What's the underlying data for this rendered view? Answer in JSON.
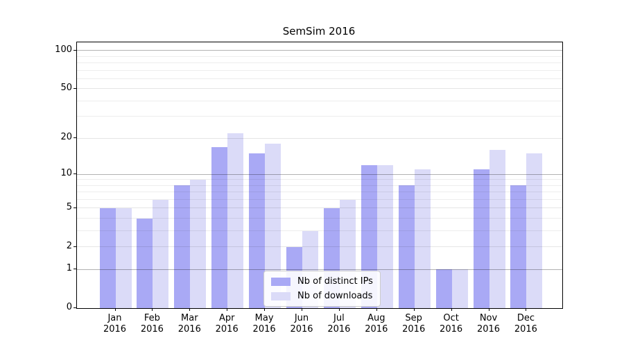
{
  "chart_data": {
    "type": "bar",
    "title": "SemSim 2016",
    "categories": [
      "Jan",
      "Feb",
      "Mar",
      "Apr",
      "May",
      "Jun",
      "Jul",
      "Aug",
      "Sep",
      "Oct",
      "Nov",
      "Dec"
    ],
    "year_label": "2016",
    "series": [
      {
        "name": "Nb of distinct IPs",
        "color": "#a9a9f5",
        "values": [
          5,
          4,
          8,
          17,
          15,
          2,
          5,
          12,
          8,
          1,
          11,
          8
        ]
      },
      {
        "name": "Nb of downloads",
        "color": "#dbdbf8",
        "values": [
          5,
          6,
          9,
          22,
          18,
          3,
          6,
          12,
          11,
          1,
          16,
          15
        ]
      }
    ],
    "yscale": "log1p",
    "ylim": [
      0,
      116
    ],
    "yticks": [
      0,
      1,
      2,
      5,
      10,
      20,
      50,
      100
    ],
    "major_grid_values": [
      1,
      10,
      100
    ],
    "medium_grid_values": [
      2,
      5,
      20,
      50
    ],
    "minor_grid_values": [
      3,
      4,
      6,
      7,
      8,
      9,
      30,
      40,
      60,
      70,
      80,
      90
    ],
    "grid": true,
    "legend_position": "lower center",
    "xlabel": "",
    "ylabel": ""
  }
}
